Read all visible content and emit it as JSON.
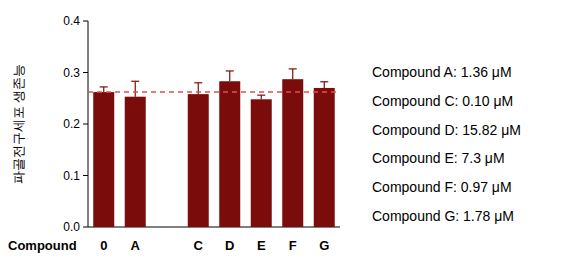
{
  "chart_data": {
    "type": "bar",
    "y_label": "파골전구세포 생존능",
    "x_label": "Compound",
    "categories": [
      "0",
      "A",
      null,
      "C",
      "D",
      "E",
      "F",
      "G"
    ],
    "values": [
      0.262,
      0.253,
      null,
      0.258,
      0.283,
      0.248,
      0.287,
      0.27
    ],
    "errors": [
      0.01,
      0.03,
      null,
      0.022,
      0.02,
      0.008,
      0.02,
      0.012
    ],
    "color": "#7b0c0c",
    "ylim": [
      0,
      0.4
    ],
    "yticks": [
      {
        "value": 0,
        "label": "0.0"
      },
      0.1,
      0.2,
      0.3,
      0.4
    ],
    "reference_line": 0.262,
    "annotations": [
      "Compound A: 1.36 μM",
      "Compound C: 0.10 μM",
      "Compound D: 15.82 μM",
      "Compound E: 7.3 μM",
      "Compound F: 0.97 μM",
      "Compound G: 1.78 μM"
    ]
  }
}
